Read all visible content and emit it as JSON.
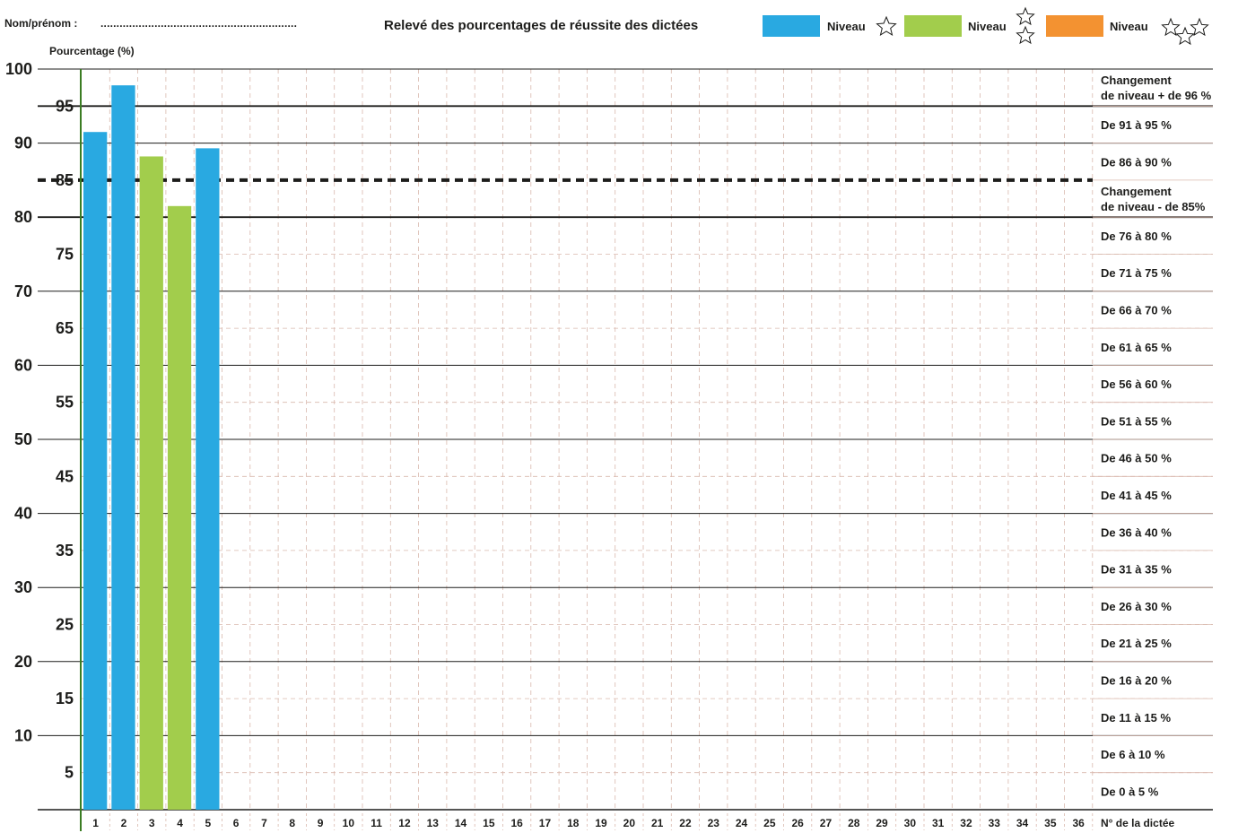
{
  "header": {
    "name_label": "Nom/prénom :",
    "name_dots": "..............................................................",
    "title": "Relevé des pourcentages de réussite des dictées"
  },
  "legend": [
    {
      "label": "Niveau",
      "color": "#29a9e1",
      "stars": 1,
      "icon": "star-icon"
    },
    {
      "label": "Niveau",
      "color": "#a2cd4c",
      "stars": 2,
      "icon": "star-icon"
    },
    {
      "label": "Niveau",
      "color": "#f39231",
      "stars": 3,
      "icon": "star-icon"
    }
  ],
  "chart_data": {
    "type": "bar",
    "ylabel": "Pourcentage (%)",
    "xlabel": "N° de la dictée",
    "ylim": [
      0,
      100
    ],
    "yticks": [
      5,
      10,
      15,
      20,
      25,
      30,
      35,
      40,
      45,
      50,
      55,
      60,
      65,
      70,
      75,
      80,
      85,
      90,
      95,
      100
    ],
    "categories": [
      "1",
      "2",
      "3",
      "4",
      "5",
      "6",
      "7",
      "8",
      "9",
      "10",
      "11",
      "12",
      "13",
      "14",
      "15",
      "16",
      "17",
      "18",
      "19",
      "20",
      "21",
      "22",
      "23",
      "24",
      "25",
      "26",
      "27",
      "28",
      "29",
      "30",
      "31",
      "32",
      "33",
      "34",
      "35",
      "36"
    ],
    "bars": [
      {
        "dictee": "1",
        "value": 91.5,
        "level": 1,
        "color": "#29a9e1"
      },
      {
        "dictee": "2",
        "value": 97.8,
        "level": 1,
        "color": "#29a9e1"
      },
      {
        "dictee": "3",
        "value": 88.2,
        "level": 2,
        "color": "#a2cd4c"
      },
      {
        "dictee": "4",
        "value": 81.5,
        "level": 2,
        "color": "#a2cd4c"
      },
      {
        "dictee": "5",
        "value": 89.3,
        "level": 1,
        "color": "#29a9e1"
      }
    ],
    "threshold_line": 85,
    "grid": true,
    "bands": [
      "Changement\nde niveau + de 96 %",
      "De 91 à 95 %",
      "De 86 à 90 %",
      "Changement\nde niveau - de 85%",
      "De 76 à 80 %",
      "De 71 à 75 %",
      "De 66 à 70 %",
      "De 61 à 65 %",
      "De 56 à 60 %",
      "De 51 à 55 %",
      "De 46 à 50 %",
      "De 41 à 45 %",
      "De 36 à 40 %",
      "De 31 à 35 %",
      "De 26 à 30 %",
      "De 21 à 25 %",
      "De 16 à 20 %",
      "De 11 à 15 %",
      "De 6 à 10 %",
      "De 0 à 5 %"
    ]
  }
}
